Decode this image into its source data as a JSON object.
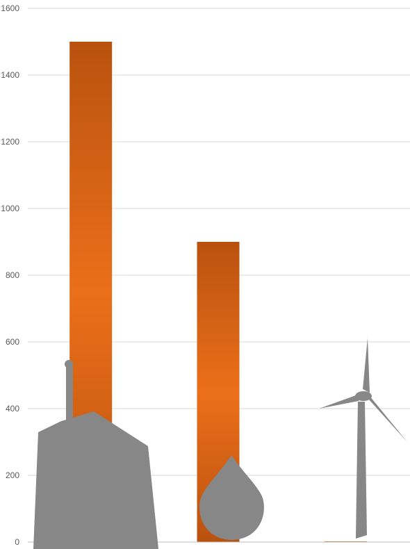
{
  "chart_data": {
    "type": "bar",
    "categories": [
      "",
      "",
      ""
    ],
    "values": [
      1500,
      900,
      2
    ],
    "ylim": [
      0,
      1600
    ],
    "y_ticks": [
      "0",
      "200",
      "400",
      "600",
      "800",
      "1000",
      "1200",
      "1400",
      "1600"
    ],
    "grid": true,
    "legend": "none",
    "bar_gradient": {
      "edge": "#b9520f",
      "mid": "#ec6f1a"
    },
    "category_icons": [
      "factory-icon",
      "water-drop-icon",
      "wind-turbine-icon"
    ],
    "icon_color": "#878787"
  }
}
